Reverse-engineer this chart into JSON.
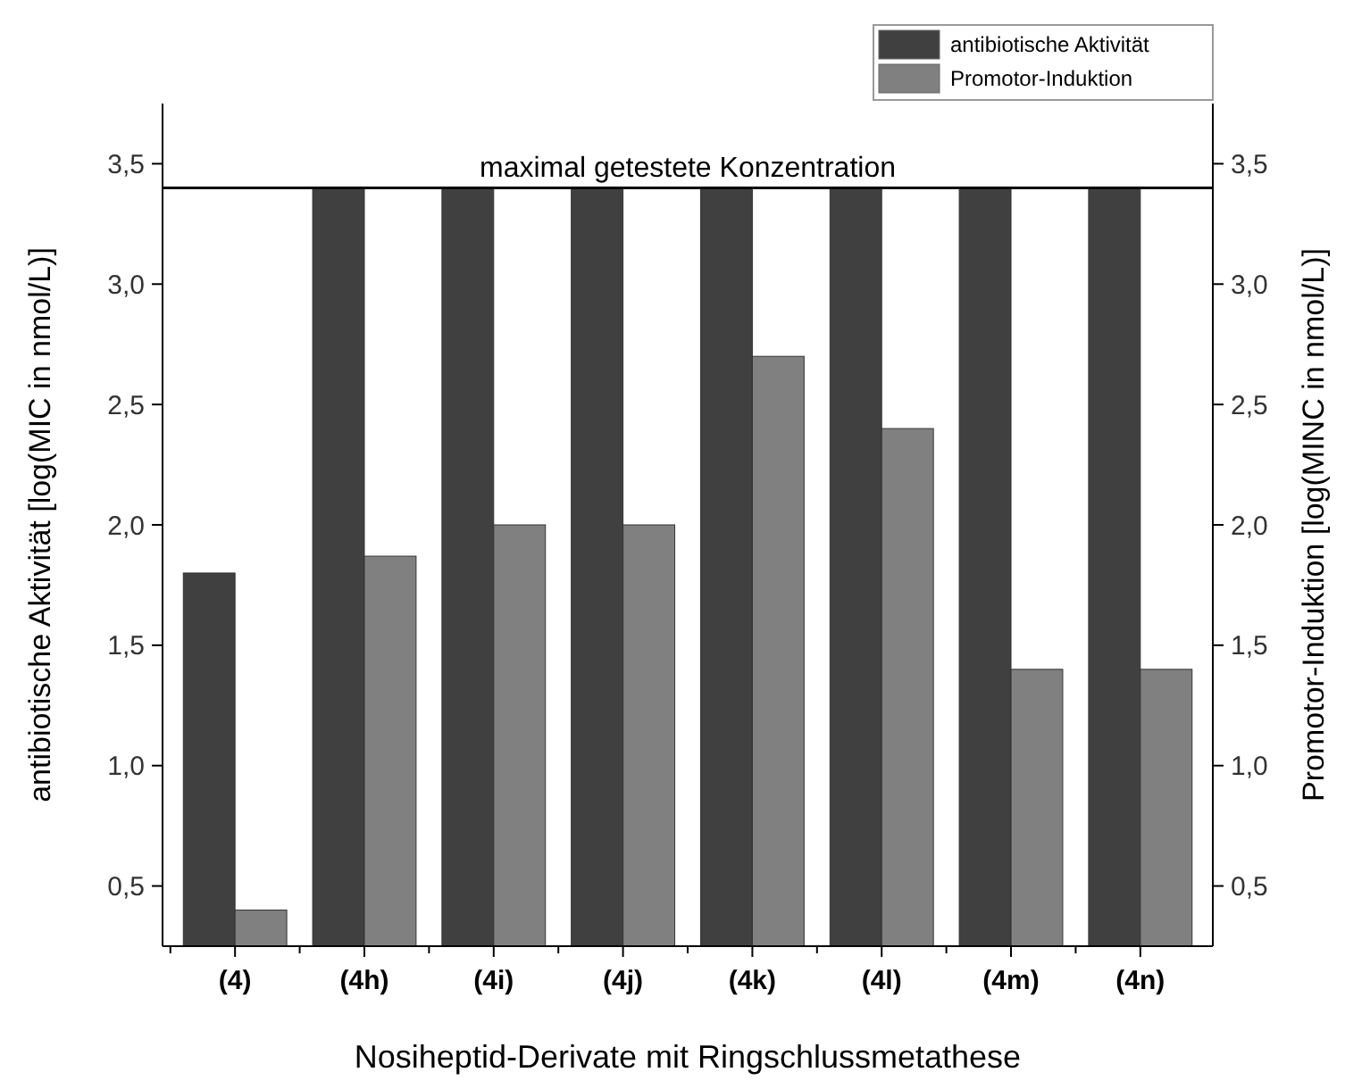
{
  "chart_data": {
    "type": "bar",
    "categories": [
      "(4)",
      "(4h)",
      "(4i)",
      "(4j)",
      "(4k)",
      "(4l)",
      "(4m)",
      "(4n)"
    ],
    "series": [
      {
        "name": "antibiotische Aktivität",
        "color": "#404040",
        "values": [
          1.8,
          3.4,
          3.4,
          3.4,
          3.4,
          3.4,
          3.4,
          3.4
        ]
      },
      {
        "name": "Promotor-Induktion",
        "color": "#808080",
        "values": [
          0.4,
          1.87,
          2.0,
          2.0,
          2.7,
          2.4,
          1.4,
          1.4
        ]
      }
    ],
    "xlabel": "Nosiheptid-Derivate mit Ringschlussmetathese",
    "ylabel": "antibiotische Aktivität [log(MIC in nmol/L)]",
    "y2label": "Promotor-Induktion [log(MINC in nmol/L)]",
    "ylim": [
      0.25,
      3.75
    ],
    "yticks": [
      {
        "value": 0.5,
        "label": "0,5"
      },
      {
        "value": 1,
        "label": "1,0"
      },
      {
        "value": 1.5,
        "label": "1,5"
      },
      {
        "value": 2,
        "label": "2,0"
      },
      {
        "value": 2.5,
        "label": "2,5"
      },
      {
        "value": 3,
        "label": "3,0"
      },
      {
        "value": 3.5,
        "label": "3,5"
      }
    ],
    "y2lim": [
      0.25,
      3.75
    ],
    "y2ticks": [
      {
        "value": 0.5,
        "label": "0,5"
      },
      {
        "value": 1,
        "label": "1,0"
      },
      {
        "value": 1.5,
        "label": "1,5"
      },
      {
        "value": 2,
        "label": "2,0"
      },
      {
        "value": 2.5,
        "label": "2,5"
      },
      {
        "value": 3,
        "label": "3,0"
      },
      {
        "value": 3.5,
        "label": "3,5"
      }
    ],
    "ref_lines": [
      {
        "axis": "y",
        "value": 3.4,
        "label": "maximal getestete Konzentration",
        "color": "#000000"
      }
    ],
    "legend": "top right",
    "grid": false
  }
}
